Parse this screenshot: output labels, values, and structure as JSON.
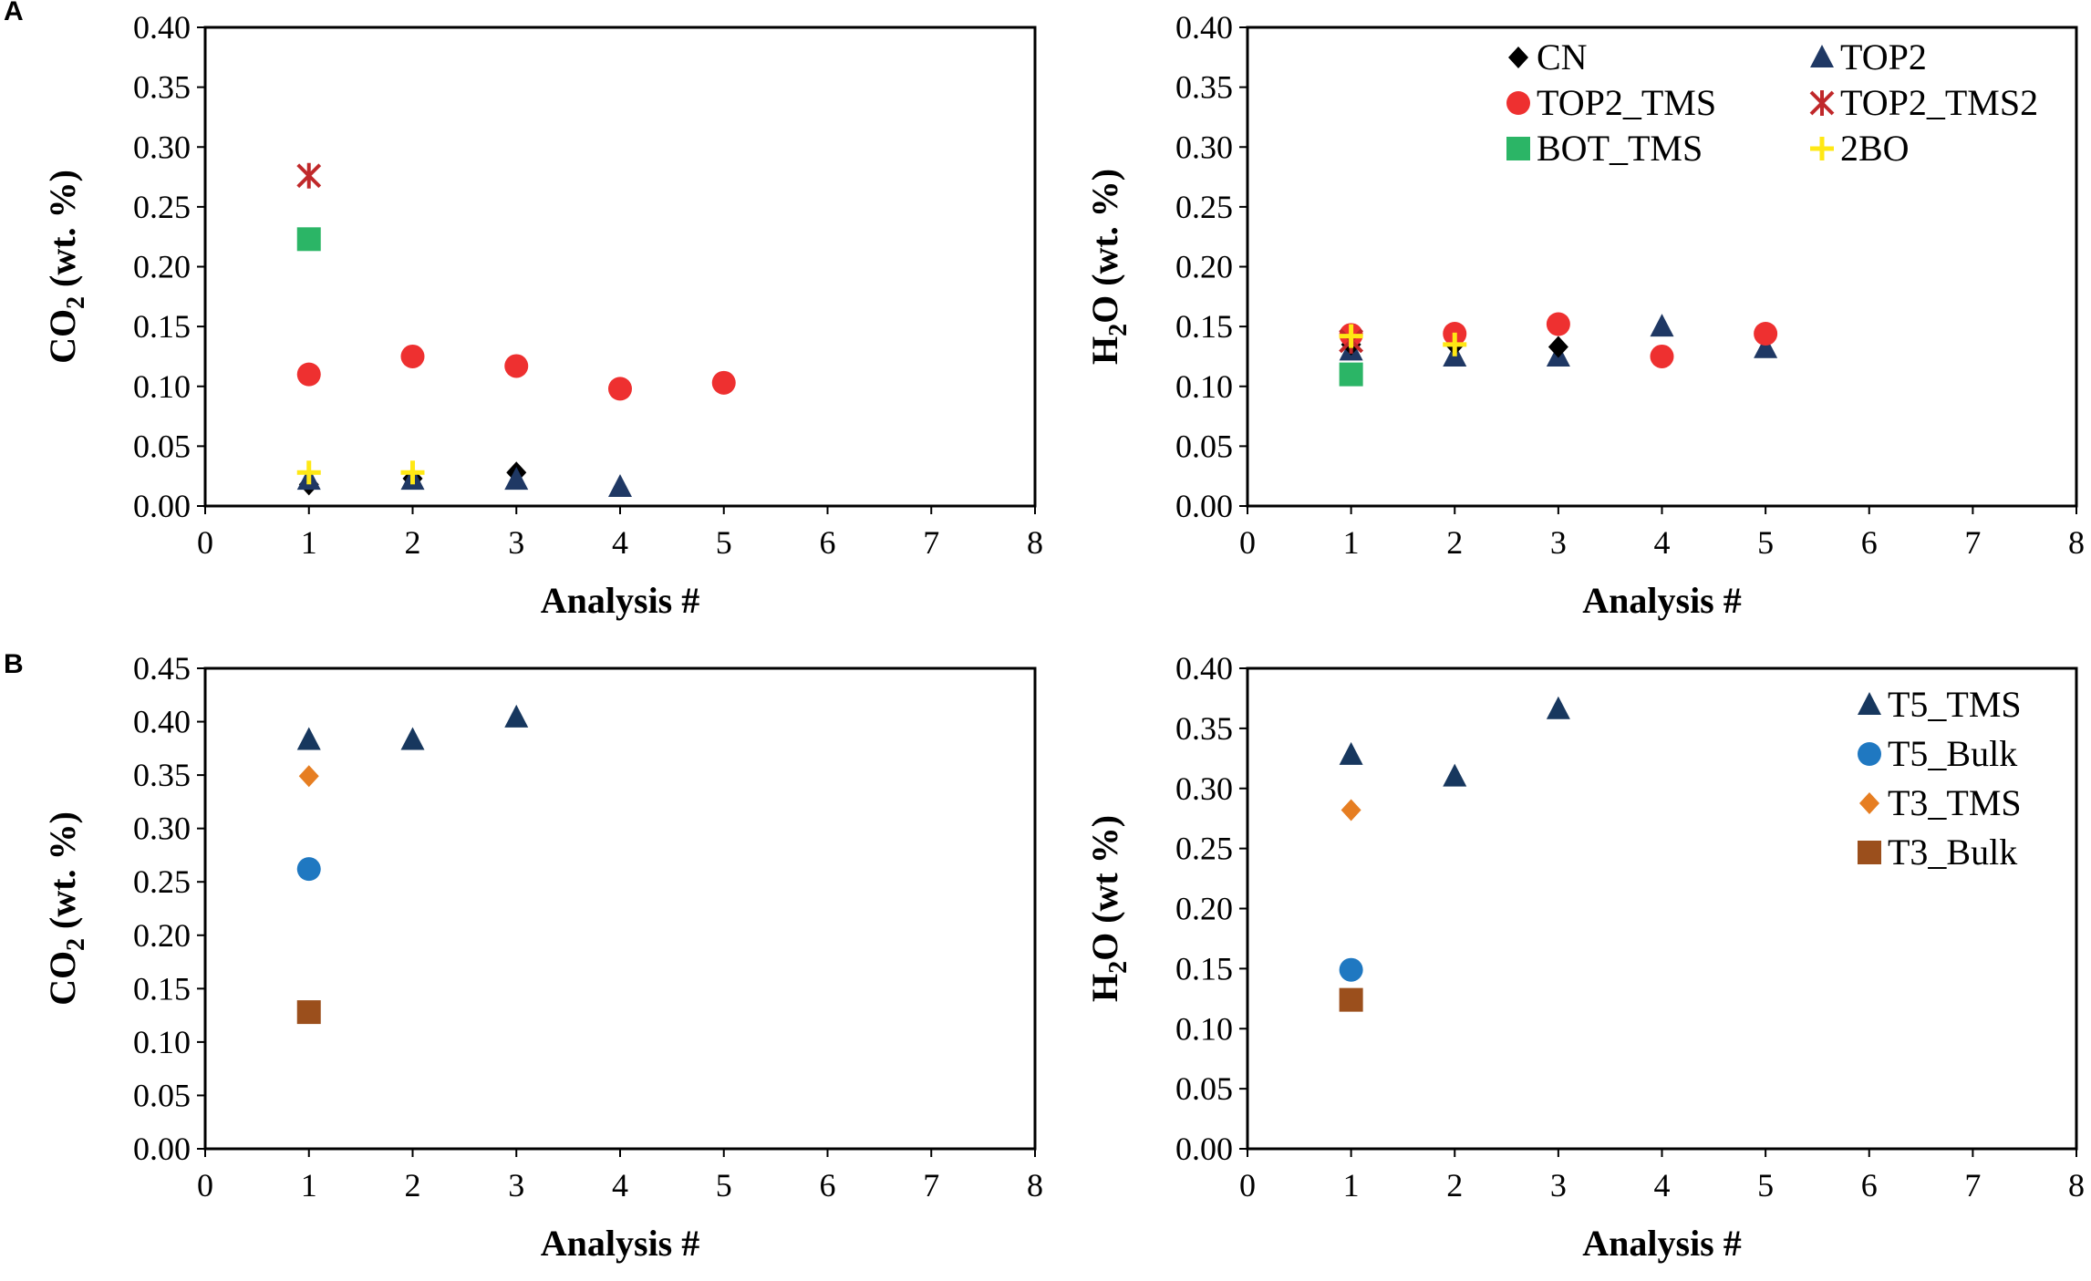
{
  "panel_labels": {
    "a": "A",
    "b": "B"
  },
  "marker_styles": {
    "CN": {
      "shape": "diamond",
      "color": "#000000"
    },
    "TOP2": {
      "shape": "triangle",
      "color": "#1f3864"
    },
    "TOP2_TMS": {
      "shape": "circle",
      "color": "#ee3030"
    },
    "TOP2_TMS2": {
      "shape": "star",
      "color": "#c0282a"
    },
    "BOT_TMS": {
      "shape": "square",
      "color": "#2bb566"
    },
    "2BO": {
      "shape": "plus",
      "color": "#ffe814"
    },
    "T5_TMS": {
      "shape": "triangle",
      "color": "#17375e"
    },
    "T5_Bulk": {
      "shape": "circle",
      "color": "#1f78c1"
    },
    "T3_TMS": {
      "shape": "diamond",
      "color": "#e67e22"
    },
    "T3_Bulk": {
      "shape": "square",
      "color": "#9b4f1c"
    }
  },
  "chart_data": [
    {
      "id": "a-co2",
      "type": "scatter",
      "panel": "A",
      "xlabel": "Analysis #",
      "ylabel": "CO2 (wt. %)",
      "ylabel_parts": [
        "CO",
        "2",
        " (wt. %)"
      ],
      "xlim": [
        0,
        8
      ],
      "ylim": [
        0,
        0.4
      ],
      "xticks": [
        "0",
        "1",
        "2",
        "3",
        "4",
        "5",
        "6",
        "7",
        "8"
      ],
      "yticks": [
        "0.00",
        "0.05",
        "0.10",
        "0.15",
        "0.20",
        "0.25",
        "0.30",
        "0.35",
        "0.40"
      ],
      "series": [
        {
          "name": "CN",
          "x": [
            1,
            2,
            3
          ],
          "y": [
            0.018,
            0.023,
            0.028
          ]
        },
        {
          "name": "TOP2",
          "x": [
            1,
            2,
            3,
            4
          ],
          "y": [
            0.022,
            0.022,
            0.022,
            0.016
          ]
        },
        {
          "name": "TOP2_TMS",
          "x": [
            1,
            2,
            3,
            4,
            5
          ],
          "y": [
            0.11,
            0.125,
            0.117,
            0.098,
            0.103
          ]
        },
        {
          "name": "TOP2_TMS2",
          "x": [
            1
          ],
          "y": [
            0.276
          ]
        },
        {
          "name": "BOT_TMS",
          "x": [
            1
          ],
          "y": [
            0.223
          ]
        },
        {
          "name": "2BO",
          "x": [
            1,
            2
          ],
          "y": [
            0.028,
            0.028
          ]
        }
      ]
    },
    {
      "id": "a-h2o",
      "type": "scatter",
      "panel": "A",
      "xlabel": "Analysis #",
      "ylabel": "H2O (wt. %)",
      "ylabel_parts": [
        "H",
        "2",
        "O (wt. %)"
      ],
      "xlim": [
        0,
        8
      ],
      "ylim": [
        0,
        0.4
      ],
      "xticks": [
        "0",
        "1",
        "2",
        "3",
        "4",
        "5",
        "6",
        "7",
        "8"
      ],
      "yticks": [
        "0.00",
        "0.05",
        "0.10",
        "0.15",
        "0.20",
        "0.25",
        "0.30",
        "0.35",
        "0.40"
      ],
      "legend": {
        "placement": "top-right",
        "columns": 2,
        "entries": [
          "CN",
          "TOP2",
          "TOP2_TMS",
          "TOP2_TMS2",
          "BOT_TMS",
          "2BO"
        ]
      },
      "series": [
        {
          "name": "TOP2",
          "x": [
            1,
            2,
            3,
            4,
            5
          ],
          "y": [
            0.13,
            0.125,
            0.125,
            0.15,
            0.132
          ]
        },
        {
          "name": "CN",
          "x": [
            1,
            2,
            3
          ],
          "y": [
            0.135,
            0.135,
            0.133
          ]
        },
        {
          "name": "TOP2_TMS",
          "x": [
            1,
            2,
            3,
            4,
            5
          ],
          "y": [
            0.143,
            0.144,
            0.152,
            0.125,
            0.144
          ]
        },
        {
          "name": "TOP2_TMS2",
          "x": [
            1
          ],
          "y": [
            0.138
          ]
        },
        {
          "name": "BOT_TMS",
          "x": [
            1
          ],
          "y": [
            0.11
          ]
        },
        {
          "name": "2BO",
          "x": [
            1,
            2
          ],
          "y": [
            0.142,
            0.135
          ]
        }
      ]
    },
    {
      "id": "b-co2",
      "type": "scatter",
      "panel": "B",
      "xlabel": "Analysis #",
      "ylabel": "CO2 (wt. %)",
      "ylabel_parts": [
        "CO",
        "2",
        " (wt. %)"
      ],
      "xlim": [
        0,
        8
      ],
      "ylim": [
        0,
        0.45
      ],
      "xticks": [
        "0",
        "1",
        "2",
        "3",
        "4",
        "5",
        "6",
        "7",
        "8"
      ],
      "yticks": [
        "0.00",
        "0.05",
        "0.10",
        "0.15",
        "0.20",
        "0.25",
        "0.30",
        "0.35",
        "0.40",
        "0.45"
      ],
      "series": [
        {
          "name": "T5_TMS",
          "x": [
            1,
            2,
            3
          ],
          "y": [
            0.383,
            0.383,
            0.404
          ]
        },
        {
          "name": "T5_Bulk",
          "x": [
            1
          ],
          "y": [
            0.262
          ]
        },
        {
          "name": "T3_TMS",
          "x": [
            1
          ],
          "y": [
            0.349
          ]
        },
        {
          "name": "T3_Bulk",
          "x": [
            1
          ],
          "y": [
            0.128
          ]
        }
      ]
    },
    {
      "id": "b-h2o",
      "type": "scatter",
      "panel": "B",
      "xlabel": "Analysis #",
      "ylabel": "H2O (wt %)",
      "ylabel_parts": [
        "H",
        "2",
        "O (wt %)"
      ],
      "xlim": [
        0,
        8
      ],
      "ylim": [
        0,
        0.4
      ],
      "xticks": [
        "0",
        "1",
        "2",
        "3",
        "4",
        "5",
        "6",
        "7",
        "8"
      ],
      "yticks": [
        "0.00",
        "0.05",
        "0.10",
        "0.15",
        "0.20",
        "0.25",
        "0.30",
        "0.35",
        "0.40"
      ],
      "legend": {
        "placement": "top-right",
        "columns": 1,
        "entries": [
          "T5_TMS",
          "T5_Bulk",
          "T3_TMS",
          "T3_Bulk"
        ]
      },
      "series": [
        {
          "name": "T5_TMS",
          "x": [
            1,
            2,
            3
          ],
          "y": [
            0.328,
            0.31,
            0.366
          ]
        },
        {
          "name": "T5_Bulk",
          "x": [
            1
          ],
          "y": [
            0.149
          ]
        },
        {
          "name": "T3_TMS",
          "x": [
            1
          ],
          "y": [
            0.282
          ]
        },
        {
          "name": "T3_Bulk",
          "x": [
            1
          ],
          "y": [
            0.124
          ]
        }
      ]
    }
  ]
}
